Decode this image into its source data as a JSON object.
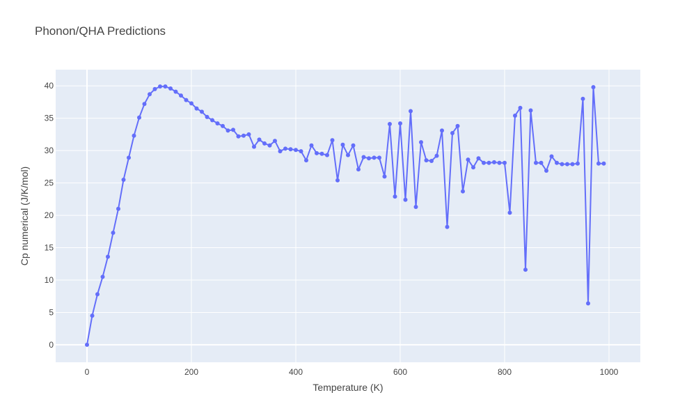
{
  "chart_data": {
    "type": "line",
    "title": "Phonon/QHA Predictions",
    "xlabel": "Temperature (K)",
    "ylabel": "Cp numerical (J/K/mol)",
    "xlim": [
      -60,
      1060
    ],
    "ylim": [
      -2.7,
      42.5
    ],
    "x_ticks": [
      0,
      200,
      400,
      600,
      800,
      1000
    ],
    "y_ticks": [
      0,
      5,
      10,
      15,
      20,
      25,
      30,
      35,
      40
    ],
    "grid": true,
    "legend": "none",
    "colors": {
      "line": "#636efa",
      "plot_bg": "#e5ecf6",
      "grid": "#ffffff"
    },
    "series": [
      {
        "x": [
          0,
          10,
          20,
          30,
          40,
          50,
          60,
          70,
          80,
          90,
          100,
          110,
          120,
          130,
          140,
          150,
          160,
          170,
          180,
          190,
          200,
          210,
          220,
          230,
          240,
          250,
          260,
          270,
          280,
          290,
          300,
          310,
          320,
          330,
          340,
          350,
          360,
          370,
          380,
          390,
          400,
          410,
          420,
          430,
          440,
          450,
          460,
          470,
          480,
          490,
          500,
          510,
          520,
          530,
          540,
          550,
          560,
          570,
          580,
          590,
          600,
          610,
          620,
          630,
          640,
          650,
          660,
          670,
          680,
          690,
          700,
          710,
          720,
          730,
          740,
          750,
          760,
          770,
          780,
          790,
          800,
          810,
          820,
          830,
          840,
          850,
          860,
          870,
          880,
          890,
          900,
          910,
          920,
          930,
          940,
          950,
          960,
          970,
          980,
          990
        ],
        "values": [
          0,
          4.5,
          7.8,
          10.5,
          13.6,
          17.3,
          21.0,
          25.5,
          28.9,
          32.3,
          35.1,
          37.2,
          38.7,
          39.5,
          39.9,
          39.9,
          39.6,
          39.1,
          38.5,
          37.8,
          37.3,
          36.5,
          36.0,
          35.2,
          34.7,
          34.2,
          33.8,
          33.1,
          33.2,
          32.2,
          32.3,
          32.5,
          30.6,
          31.7,
          31.1,
          30.8,
          31.5,
          29.9,
          30.3,
          30.2,
          30.1,
          29.9,
          28.5,
          30.8,
          29.6,
          29.5,
          29.3,
          31.6,
          25.4,
          30.9,
          29.3,
          30.8,
          27.1,
          29.0,
          28.8,
          28.9,
          28.9,
          26.0,
          34.1,
          22.9,
          34.2,
          22.4,
          36.1,
          21.3,
          31.3,
          28.5,
          28.4,
          29.2,
          33.1,
          18.2,
          32.7,
          33.8,
          23.7,
          28.6,
          27.4,
          28.8,
          28.1,
          28.1,
          28.2,
          28.1,
          28.1,
          20.4,
          35.4,
          36.6,
          11.6,
          36.2,
          28.1,
          28.1,
          26.9,
          29.1,
          28.1,
          27.9,
          27.9,
          27.9,
          28.0,
          38.0,
          6.4,
          39.8,
          28.0,
          28.0
        ]
      }
    ]
  }
}
